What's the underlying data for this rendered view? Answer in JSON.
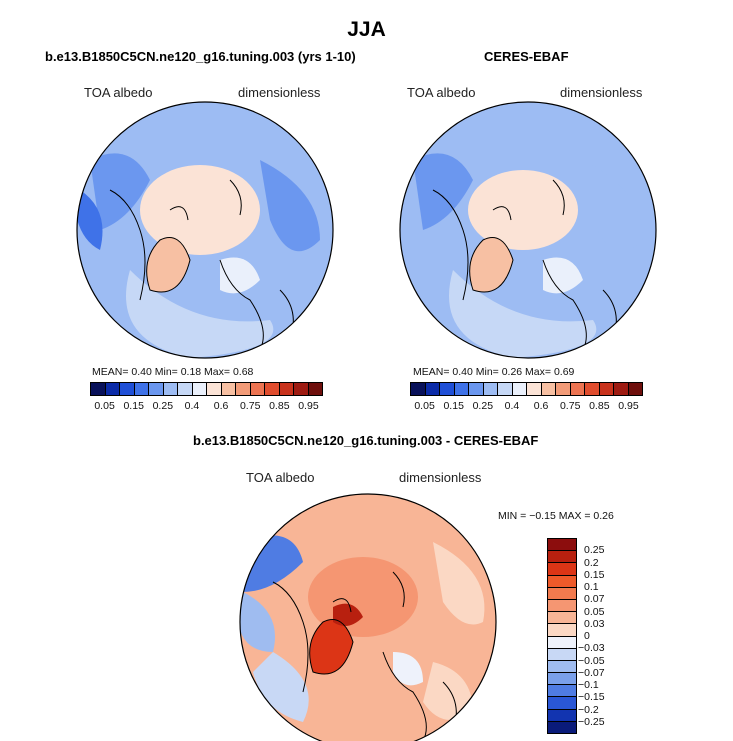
{
  "title": "JJA",
  "panels": [
    {
      "title": "b.e13.B1850C5CN.ne120_g16.tuning.003 (yrs 1-10)",
      "variable": "TOA albedo",
      "units": "dimensionless",
      "stats": "MEAN=   0.40   Min=   0.18   Max=   0.68"
    },
    {
      "title": "CERES-EBAF",
      "variable": "TOA albedo",
      "units": "dimensionless",
      "stats": "MEAN=   0.40   Min=   0.26   Max=   0.69"
    },
    {
      "title": "b.e13.B1850C5CN.ne120_g16.tuning.003 - CERES-EBAF",
      "variable": "TOA albedo",
      "units": "dimensionless",
      "stats": "MIN =   −0.15  MAX =    0.26"
    }
  ],
  "abs_colorbar": {
    "labels": [
      "0.05",
      "0.15",
      "0.25",
      "0.4",
      "0.6",
      "0.75",
      "0.85",
      "0.95"
    ],
    "colors": [
      "#08115a",
      "#0b2ba8",
      "#1f4fd6",
      "#3f72e8",
      "#6b97ef",
      "#9dbcf3",
      "#c6d8f6",
      "#eaf0fb",
      "#fbe3d6",
      "#f7c0a3",
      "#f29b78",
      "#ec7452",
      "#e04d2e",
      "#c8321c",
      "#9e1b12",
      "#6e0f0c"
    ]
  },
  "diff_colorbar": {
    "labels": [
      "0.25",
      "0.2",
      "0.15",
      "0.1",
      "0.07",
      "0.05",
      "0.03",
      "0",
      "−0.03",
      "−0.05",
      "−0.07",
      "−0.1",
      "−0.15",
      "−0.2",
      "−0.25"
    ],
    "colors": [
      "#8c0d0d",
      "#b8200f",
      "#dc3516",
      "#ee5a2a",
      "#f27a4e",
      "#f59672",
      "#f8b596",
      "#fbd8c4",
      "#eef2fb",
      "#c8d8f5",
      "#9fbcf0",
      "#7aa0ea",
      "#4f7ce3",
      "#2a57d6",
      "#1234b0",
      "#0a1b7a"
    ]
  }
}
